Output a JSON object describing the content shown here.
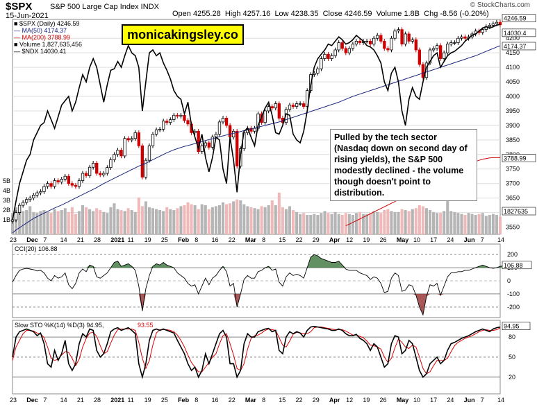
{
  "header": {
    "symbol": "$SPX",
    "name": "S&P 500 Large Cap Index INDX",
    "date": "15-Jun-2021",
    "open": "Open 4255.28",
    "high": "High 4257.16",
    "low": "Low 4238.35",
    "close": "Close 4246.59",
    "volume": "Volume 1.8B",
    "change": "Chg -8.56 (-0.20%)",
    "brand": "© StockCharts.com"
  },
  "watermark": "monicakingsley.co",
  "annotation": "Pulled by the tech sector (Nasdaq down on second day of rising yields), the S&P 500 modestly declined - the volume though doesn't point to distribution.",
  "legend": [
    {
      "text": "$SPX (Daily) 4246.59",
      "color": "#000000"
    },
    {
      "text": "MA(50) 4174.37",
      "color": "#1a237e"
    },
    {
      "text": "MA(200) 3788.99",
      "color": "#cc0000"
    },
    {
      "text": "Volume 1,827,635,456",
      "color": "#000000"
    },
    {
      "text": "$NDX 14030.41",
      "color": "#000000"
    }
  ],
  "panels": {
    "cci_label": "CCI(20) 106.88",
    "sto_label_a": "Slow STO %K(14) %D(3) 94.95,",
    "sto_label_b": "93.55"
  },
  "colors": {
    "up": "#000000",
    "down": "#cc0000",
    "ma50": "#1a237e",
    "ma200": "#cc0000",
    "cci_fill": "#2e6b2e",
    "cci_neg": "#8b2020",
    "sto_d": "#dd0000"
  },
  "chart_data": {
    "type": "candlestick",
    "x_labels": [
      "23",
      "Dec",
      "7",
      "14",
      "21",
      "28",
      "2021",
      "11",
      "19",
      "25",
      "Feb",
      "8",
      "16",
      "22",
      "Mar",
      "8",
      "15",
      "22",
      "29",
      "Apr",
      "12",
      "19",
      "26",
      "May",
      "10",
      "17",
      "24",
      "Jun",
      "7",
      "14"
    ],
    "price_ticks": [
      3550,
      3600,
      3650,
      3700,
      3750,
      3800,
      3850,
      3900,
      3950,
      4000,
      4050,
      4100,
      4150,
      4200
    ],
    "price_ylim": [
      3525,
      4265
    ],
    "volume_ticks": [
      "1B",
      "2B",
      "3B",
      "4B",
      "5B"
    ],
    "price_tags": {
      "spx": "4246.59",
      "ndx": "14030.4",
      "ma50": "4174.37",
      "ma200": "3788.99",
      "volume": "1827635"
    },
    "close_series": [
      3575,
      3600,
      3625,
      3635,
      3645,
      3650,
      3660,
      3668,
      3672,
      3690,
      3700,
      3690,
      3710,
      3705,
      3715,
      3725,
      3700,
      3694,
      3690,
      3710,
      3735,
      3727,
      3756,
      3770,
      3735,
      3730,
      3735,
      3755,
      3782,
      3800,
      3815,
      3795,
      3855,
      3850,
      3855,
      3875,
      3830,
      3722,
      3780,
      3830,
      3870,
      3885,
      3887,
      3915,
      3910,
      3920,
      3935,
      3932,
      3935,
      3917,
      3905,
      3875,
      3880,
      3810,
      3830,
      3840,
      3825,
      3860,
      3870,
      3912,
      3925,
      3900,
      3860,
      3880,
      3760,
      3820,
      3875,
      3890,
      3880,
      3890,
      3940,
      3910,
      3950,
      3965,
      3960,
      3975,
      3925,
      3910,
      3955,
      3970,
      3965,
      3975,
      3975,
      3965,
      4020,
      4075,
      4080,
      4095,
      4130,
      4145,
      4130,
      4140,
      4160,
      4185,
      4165,
      4150,
      4165,
      4180,
      4190,
      4185,
      4190,
      4190,
      4180,
      4200,
      4210,
      4190,
      4165,
      4160,
      4200,
      4225,
      4230,
      4180,
      4215,
      4190,
      4195,
      4160,
      4110,
      4065,
      4115,
      4160,
      4165,
      4175,
      4130,
      4150,
      4180,
      4185,
      4185,
      4200,
      4205,
      4200,
      4205,
      4215,
      4225,
      4220,
      4230,
      4240,
      4245,
      4250,
      4255,
      4246.59
    ],
    "ma50": [
      3530,
      3540,
      3548,
      3556,
      3564,
      3572,
      3580,
      3586,
      3592,
      3598,
      3604,
      3610,
      3616,
      3621,
      3626,
      3632,
      3638,
      3644,
      3650,
      3656,
      3662,
      3668,
      3674,
      3680,
      3686,
      3693,
      3700,
      3706,
      3712,
      3718,
      3724,
      3730,
      3736,
      3742,
      3748,
      3754,
      3760,
      3765,
      3770,
      3776,
      3782,
      3788,
      3794,
      3800,
      3806,
      3811,
      3816,
      3820,
      3824,
      3828,
      3831,
      3834,
      3838,
      3841,
      3844,
      3848,
      3851,
      3854,
      3858,
      3861,
      3864,
      3867,
      3870,
      3873,
      3876,
      3879,
      3882,
      3885,
      3888,
      3891,
      3894,
      3897,
      3900,
      3903,
      3906,
      3909,
      3912,
      3916,
      3920,
      3924,
      3928,
      3932,
      3936,
      3940,
      3944,
      3948,
      3952,
      3956,
      3960,
      3964,
      3968,
      3972,
      3976,
      3980,
      3985,
      3990,
      3995,
      4000,
      4004,
      4008,
      4012,
      4016,
      4020,
      4024,
      4028,
      4032,
      4036,
      4040,
      4044,
      4048,
      4052,
      4056,
      4060,
      4064,
      4068,
      4072,
      4076,
      4080,
      4084,
      4088,
      4092,
      4096,
      4100,
      4104,
      4108,
      4112,
      4116,
      4120,
      4124,
      4128,
      4132,
      4136,
      4140,
      4145,
      4150,
      4155,
      4160,
      4165,
      4170,
      4174.37
    ],
    "ma200_from_index": 95,
    "ma200": [
      3555,
      3560,
      3566,
      3572,
      3578,
      3584,
      3590,
      3596,
      3602,
      3608,
      3614,
      3620,
      3626,
      3632,
      3638,
      3644,
      3650,
      3656,
      3662,
      3668,
      3674,
      3680,
      3686,
      3692,
      3698,
      3704,
      3710,
      3716,
      3722,
      3728,
      3734,
      3740,
      3746,
      3752,
      3758,
      3764,
      3770,
      3776,
      3780,
      3784,
      3786,
      3788,
      3788.99,
      3788.99,
      3788.99
    ],
    "ndx_series": [
      3575,
      3640,
      3700,
      3740,
      3780,
      3800,
      3850,
      3875,
      3900,
      3910,
      3950,
      3920,
      3890,
      3930,
      3970,
      3985,
      4000,
      3950,
      3980,
      4030,
      4075,
      4050,
      4100,
      4130,
      4100,
      4040,
      3980,
      4040,
      4090,
      4095,
      4120,
      4100,
      4140,
      4175,
      4150,
      4140,
      4100,
      3950,
      4050,
      4150,
      4160,
      4140,
      4150,
      4115,
      4090,
      4060,
      4020,
      4000,
      3990,
      3940,
      3980,
      3900,
      3860,
      3820,
      3870,
      3790,
      3740,
      3790,
      3860,
      3850,
      3750,
      3700,
      3860,
      3780,
      3670,
      3800,
      3880,
      3890,
      3860,
      3830,
      3900,
      3930,
      3960,
      3980,
      3935,
      3875,
      3870,
      3900,
      3940,
      3935,
      3870,
      3850,
      3840,
      3880,
      3950,
      4040,
      4100,
      4130,
      4145,
      4160,
      4180,
      4175,
      4190,
      4205,
      4195,
      4180,
      4185,
      4195,
      4210,
      4200,
      4190,
      4175,
      4170,
      4160,
      4140,
      4115,
      4050,
      4020,
      4080,
      4100,
      4050,
      3950,
      3900,
      3990,
      4030,
      4000,
      3990,
      4050,
      4100,
      4120,
      4140,
      4150,
      4100,
      4120,
      4140,
      4150,
      4155,
      4165,
      4175,
      4190,
      4200,
      4210,
      4215,
      4225,
      4235,
      4240,
      4235,
      4240,
      4245,
      4248
    ],
    "cci": [
      -10,
      40,
      80,
      90,
      95,
      90,
      85,
      75,
      80,
      60,
      20,
      0,
      40,
      20,
      30,
      60,
      -30,
      -60,
      -20,
      60,
      90,
      70,
      120,
      110,
      30,
      20,
      40,
      60,
      100,
      140,
      150,
      110,
      120,
      130,
      110,
      80,
      -40,
      -230,
      -60,
      40,
      110,
      130,
      120,
      140,
      120,
      110,
      100,
      60,
      40,
      20,
      -20,
      -40,
      -30,
      -100,
      -40,
      20,
      -30,
      20,
      40,
      80,
      110,
      70,
      -40,
      -20,
      -200,
      -100,
      10,
      40,
      20,
      20,
      70,
      80,
      100,
      110,
      80,
      90,
      -10,
      -40,
      30,
      60,
      40,
      50,
      40,
      20,
      100,
      180,
      200,
      190,
      170,
      160,
      150,
      140,
      140,
      150,
      120,
      90,
      80,
      80,
      80,
      60,
      50,
      40,
      10,
      30,
      20,
      -20,
      -90,
      -80,
      20,
      60,
      40,
      -80,
      -70,
      -30,
      -40,
      -110,
      -200,
      -260,
      -120,
      -30,
      -40,
      -20,
      -110,
      -40,
      30,
      60,
      60,
      70,
      70,
      80,
      80,
      90,
      100,
      110,
      120,
      110,
      100,
      95,
      100,
      110,
      115,
      106.88
    ],
    "sto_k": [
      50,
      80,
      88,
      90,
      92,
      90,
      88,
      82,
      86,
      70,
      40,
      35,
      60,
      45,
      55,
      75,
      40,
      30,
      40,
      70,
      85,
      80,
      92,
      90,
      60,
      50,
      55,
      70,
      88,
      92,
      94,
      90,
      92,
      94,
      90,
      85,
      40,
      20,
      40,
      75,
      90,
      92,
      90,
      92,
      90,
      88,
      86,
      75,
      65,
      55,
      40,
      30,
      35,
      20,
      30,
      55,
      40,
      55,
      70,
      85,
      90,
      80,
      40,
      40,
      20,
      30,
      70,
      85,
      80,
      80,
      88,
      90,
      92,
      93,
      88,
      90,
      60,
      55,
      80,
      88,
      85,
      88,
      86,
      80,
      90,
      95,
      96,
      95,
      94,
      93,
      92,
      90,
      90,
      92,
      90,
      85,
      82,
      82,
      84,
      78,
      75,
      70,
      60,
      70,
      65,
      50,
      35,
      40,
      70,
      82,
      80,
      55,
      60,
      75,
      70,
      50,
      30,
      20,
      25,
      40,
      45,
      50,
      40,
      45,
      60,
      70,
      72,
      75,
      78,
      80,
      82,
      85,
      88,
      90,
      92,
      90,
      88,
      92,
      94,
      94.95
    ],
    "sto_d": [
      45,
      65,
      75,
      85,
      90,
      90,
      89,
      86,
      85,
      79,
      65,
      48,
      45,
      47,
      53,
      58,
      57,
      48,
      37,
      47,
      65,
      78,
      86,
      87,
      81,
      67,
      55,
      58,
      71,
      83,
      91,
      92,
      92,
      92,
      92,
      90,
      72,
      48,
      33,
      45,
      68,
      86,
      91,
      91,
      91,
      90,
      88,
      83,
      75,
      65,
      53,
      42,
      35,
      28,
      28,
      35,
      42,
      50,
      55,
      70,
      82,
      85,
      70,
      53,
      33,
      30,
      40,
      62,
      78,
      82,
      83,
      86,
      90,
      92,
      91,
      90,
      79,
      68,
      65,
      74,
      84,
      87,
      86,
      85,
      85,
      88,
      94,
      95,
      95,
      94,
      93,
      92,
      91,
      91,
      91,
      89,
      86,
      83,
      83,
      81,
      79,
      74,
      68,
      67,
      65,
      62,
      50,
      42,
      48,
      64,
      77,
      72,
      65,
      63,
      68,
      65,
      50,
      33,
      25,
      28,
      37,
      45,
      45,
      45,
      48,
      58,
      67,
      72,
      75,
      78,
      80,
      82,
      85,
      88,
      90,
      91,
      90,
      90,
      91,
      93.55
    ],
    "cci_ticks": [
      200,
      100,
      0,
      -100,
      -200
    ],
    "sto_ticks": [
      80,
      50,
      20
    ],
    "sto_current": "94.95",
    "cci_current": "106.88",
    "volume_series": [
      2.2,
      2.8,
      2.6,
      2.4,
      2.5,
      2.9,
      2.3,
      2.2,
      2.4,
      2.5,
      2.3,
      2.2,
      2.6,
      2.4,
      2.5,
      2.7,
      2.3,
      2.8,
      2.1,
      2.4,
      3.0,
      2.8,
      2.6,
      2.4,
      2.7,
      2.5,
      2.3,
      2.2,
      2.8,
      3.2,
      2.6,
      2.5,
      2.4,
      2.7,
      2.5,
      2.3,
      3.8,
      2.9,
      3.4,
      2.8,
      2.7,
      2.6,
      2.5,
      2.4,
      2.8,
      2.6,
      2.5,
      2.7,
      2.9,
      3.0,
      3.3,
      3.1,
      3.0,
      2.6,
      3.1,
      3.0,
      2.6,
      2.8,
      2.9,
      3.0,
      3.3,
      3.1,
      3.2,
      3.4,
      3.6,
      3.5,
      3.1,
      2.9,
      2.8,
      2.7,
      2.6,
      2.9,
      2.8,
      3.0,
      3.5,
      3.0,
      4.3,
      2.8,
      2.6,
      2.9,
      2.5,
      2.3,
      2.1,
      2.2,
      2.0,
      2.0,
      2.1,
      2.0,
      2.2,
      2.4,
      2.2,
      2.1,
      2.3,
      2.1,
      2.0,
      2.2,
      2.1,
      2.0,
      2.2,
      2.3,
      2.1,
      2.1,
      2.2,
      2.4,
      2.3,
      2.2,
      2.5,
      2.6,
      2.4,
      2.3,
      2.3,
      2.6,
      2.5,
      2.4,
      2.6,
      2.7,
      3.0,
      2.9,
      2.7,
      2.5,
      2.3,
      2.2,
      2.2,
      2.4,
      4.0,
      2.4,
      2.3,
      2.2,
      2.1,
      2.0,
      2.2,
      2.1,
      2.0,
      2.1,
      2.2,
      1.9,
      2.0,
      2.1,
      2.0,
      1.8
    ]
  }
}
